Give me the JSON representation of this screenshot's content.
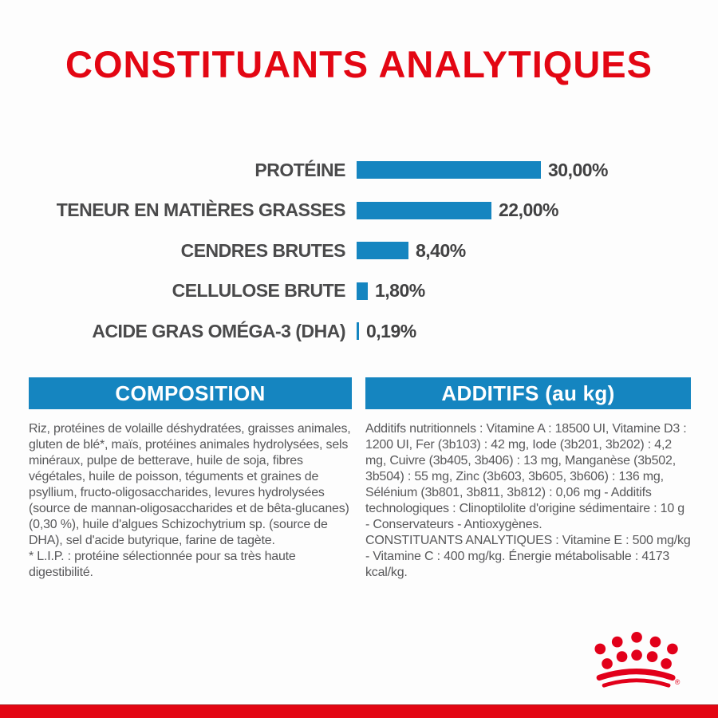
{
  "page": {
    "title": "CONSTITUANTS ANALYTIQUES"
  },
  "chart_data": {
    "type": "bar",
    "orientation": "horizontal",
    "title": "CONSTITUANTS ANALYTIQUES",
    "categories": [
      "PROTÉINE",
      "TENEUR EN MATIÈRES GRASSES",
      "CENDRES BRUTES",
      "CELLULOSE BRUTE",
      "ACIDE GRAS OMÉGA-3 (DHA)"
    ],
    "values": [
      30.0,
      22.0,
      8.4,
      1.8,
      0.19
    ],
    "value_labels": [
      "30,00%",
      "22,00%",
      "8,40%",
      "1,80%",
      "0,19%"
    ],
    "unit": "%",
    "xlim": [
      0,
      30
    ],
    "grid": false,
    "legend": false,
    "bar_color": "#1585c0",
    "label_color": "#4a4a4b"
  },
  "composition": {
    "header": "COMPOSITION",
    "body": "Riz, protéines de volaille déshydratées, graisses animales, gluten de blé*, maïs, protéines animales hydrolysées, sels minéraux, pulpe de betterave, huile de soja, fibres végétales, huile de poisson, téguments et graines de psyllium, fructo-oligosaccharides, levures hydrolysées (source de mannan-oligosaccharides et de bêta-glucanes) (0,30 %), huile d'algues Schizochytrium sp. (source de DHA), sel d'acide butyrique, farine de tagète.",
    "footnote": "* L.I.P. : protéine sélectionnée pour sa très haute digestibilité."
  },
  "additives": {
    "header": "ADDITIFS (au kg)",
    "body": "Additifs nutritionnels : Vitamine A : 18500 UI, Vitamine D3 : 1200 UI, Fer (3b103) : 42 mg, Iode (3b201, 3b202) : 4,2 mg, Cuivre (3b405, 3b406) : 13 mg, Manganèse (3b502, 3b504) : 55 mg, Zinc (3b603, 3b605, 3b606) : 136 mg, Sélénium (3b801, 3b811, 3b812) : 0,06 mg - Additifs technologiques : Clinoptilolite d'origine sédimentaire : 10 g - Conservateurs - Antioxygènes.",
    "analytical": "CONSTITUANTS ANALYTIQUES : Vitamine E : 500 mg/kg - Vitamine C : 400 mg/kg. Énergie métabolisable : 4173 kcal/kg."
  },
  "branding": {
    "logo": "royal-canin-crown",
    "registered_mark": "®",
    "crown_color": "#e2001a"
  },
  "colors": {
    "title_red": "#e30613",
    "accent_blue": "#1585c0",
    "text_gray": "#58585a",
    "bottom_bar_red": "#e30613"
  }
}
